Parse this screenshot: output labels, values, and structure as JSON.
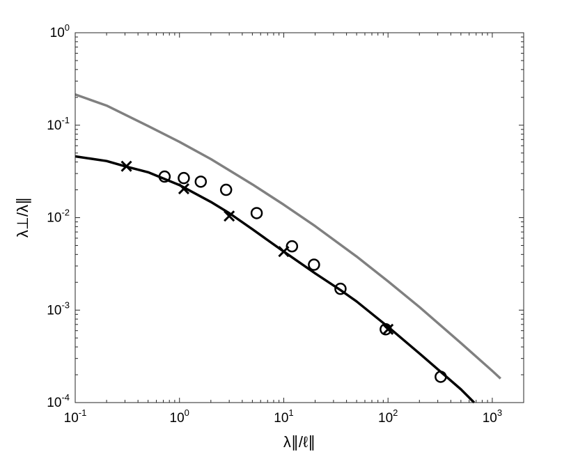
{
  "chart_data": {
    "type": "scatter",
    "xscale": "log",
    "yscale": "log",
    "xlim": [
      0.1,
      2000
    ],
    "ylim": [
      0.0001,
      1
    ],
    "xlabel": "λ∥/ℓ∥",
    "ylabel": "λ⊥/λ∥",
    "xticks": [
      {
        "base": "10",
        "exp": "-1",
        "value": 0.1
      },
      {
        "base": "10",
        "exp": "0",
        "value": 1
      },
      {
        "base": "10",
        "exp": "1",
        "value": 10
      },
      {
        "base": "10",
        "exp": "2",
        "value": 100
      },
      {
        "base": "10",
        "exp": "3",
        "value": 1000
      }
    ],
    "yticks": [
      {
        "base": "10",
        "exp": "-4",
        "value": 0.0001
      },
      {
        "base": "10",
        "exp": "-3",
        "value": 0.001
      },
      {
        "base": "10",
        "exp": "-2",
        "value": 0.01
      },
      {
        "base": "10",
        "exp": "-1",
        "value": 0.1
      },
      {
        "base": "10",
        "exp": "0",
        "value": 1
      }
    ],
    "grid": false,
    "colors": {
      "black_curve": "#000000",
      "gray_curve": "#808080",
      "markers": "#000000"
    },
    "series": [
      {
        "kind": "line",
        "color": "#808080",
        "x": [
          0.1,
          0.2,
          0.5,
          1,
          2,
          5,
          10,
          20,
          50,
          100,
          200,
          500,
          1000,
          1200
        ],
        "y": [
          0.215,
          0.163,
          0.098,
          0.066,
          0.043,
          0.0229,
          0.0138,
          0.0081,
          0.0038,
          0.00205,
          0.00108,
          0.00044,
          0.00022,
          0.000182
        ]
      },
      {
        "kind": "line",
        "color": "#000000",
        "x": [
          0.1,
          0.2,
          0.3,
          0.5,
          1,
          2,
          3,
          5,
          10,
          20,
          35,
          50,
          100,
          200,
          500,
          670
        ],
        "y": [
          0.046,
          0.041,
          0.036,
          0.031,
          0.0225,
          0.0148,
          0.0112,
          0.0075,
          0.0043,
          0.0025,
          0.00165,
          0.00124,
          0.00066,
          0.00034,
          0.000139,
          0.0001
        ]
      },
      {
        "kind": "marker",
        "marker": "circle",
        "x": [
          0.72,
          1.1,
          1.6,
          2.8,
          5.5,
          12,
          19.5,
          35,
          95,
          320
        ],
        "y": [
          0.0278,
          0.0268,
          0.0245,
          0.02,
          0.0112,
          0.0049,
          0.0031,
          0.0017,
          0.00062,
          0.00019
        ]
      },
      {
        "kind": "marker",
        "marker": "x",
        "x": [
          0.31,
          1.1,
          3.0,
          10.0,
          100
        ],
        "y": [
          0.036,
          0.0205,
          0.0104,
          0.0043,
          0.00062
        ]
      }
    ]
  }
}
